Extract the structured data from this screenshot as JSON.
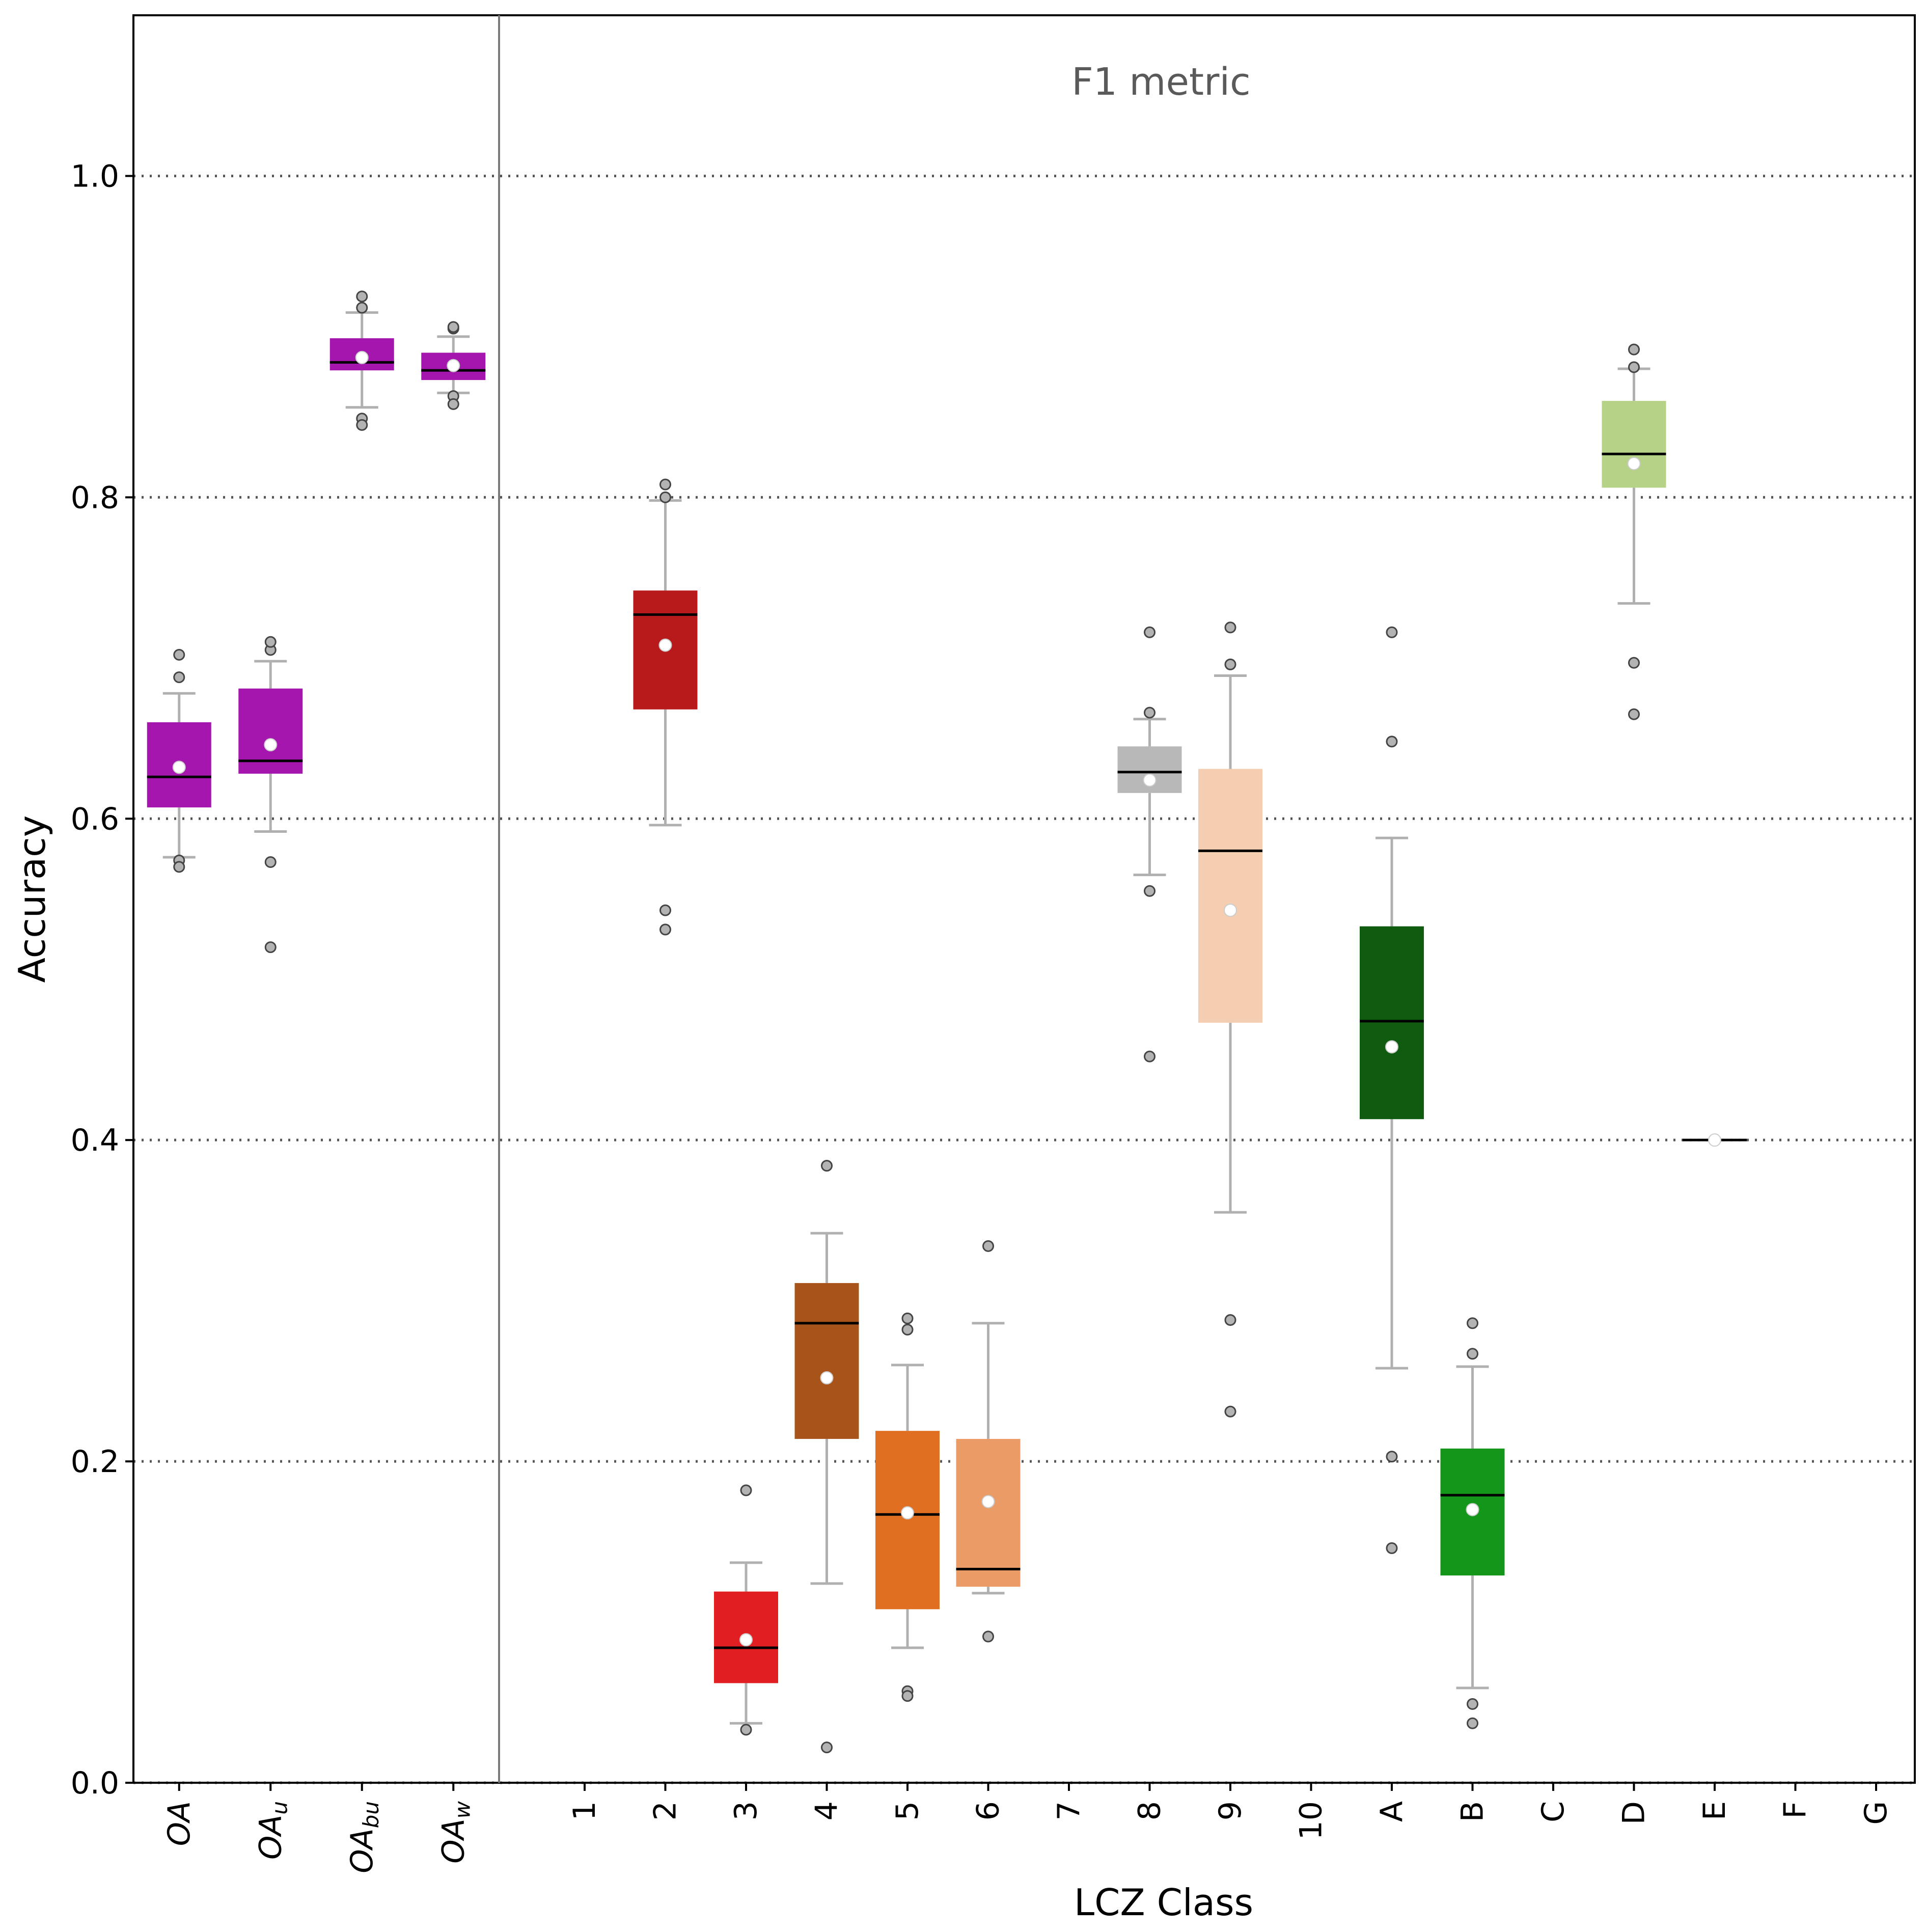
{
  "chart_data": {
    "type": "box",
    "annotation": "F1 metric",
    "xlabel": "LCZ Class",
    "ylabel": "Accuracy",
    "ylim": [
      0.0,
      1.1
    ],
    "yticks": [
      "0.0",
      "0.2",
      "0.4",
      "0.6",
      "0.8",
      "1.0"
    ],
    "grid": "dotted horizontal at each y tick",
    "groups": [
      {
        "name": "overall",
        "categories": [
          {
            "label": "OA",
            "sub": "",
            "color": "#a416ad",
            "q1": 0.607,
            "median": 0.626,
            "q3": 0.66,
            "lo": 0.576,
            "hi": 0.678,
            "mean": 0.632,
            "fliers": [
              0.574,
              0.57,
              0.688,
              0.702
            ]
          },
          {
            "label": "OA",
            "sub": "u",
            "color": "#a416ad",
            "q1": 0.628,
            "median": 0.636,
            "q3": 0.681,
            "lo": 0.592,
            "hi": 0.698,
            "mean": 0.646,
            "fliers": [
              0.573,
              0.52,
              0.705,
              0.71
            ]
          },
          {
            "label": "OA",
            "sub": "bu",
            "color": "#a416ad",
            "q1": 0.879,
            "median": 0.884,
            "q3": 0.899,
            "lo": 0.856,
            "hi": 0.915,
            "mean": 0.887,
            "fliers": [
              0.849,
              0.845,
              0.918,
              0.925
            ]
          },
          {
            "label": "OA",
            "sub": "w",
            "color": "#a416ad",
            "q1": 0.873,
            "median": 0.879,
            "q3": 0.89,
            "lo": 0.865,
            "hi": 0.9,
            "mean": 0.882,
            "fliers": [
              0.863,
              0.858,
              0.905,
              0.906
            ]
          }
        ]
      },
      {
        "name": "lcz",
        "categories": [
          {
            "label": "1",
            "sub": "",
            "color": null
          },
          {
            "label": "2",
            "sub": "",
            "color": "#b81a1c",
            "q1": 0.668,
            "median": 0.727,
            "q3": 0.742,
            "lo": 0.596,
            "hi": 0.798,
            "mean": 0.708,
            "fliers": [
              0.543,
              0.531,
              0.8,
              0.808
            ]
          },
          {
            "label": "3",
            "sub": "",
            "color": "#e11f23",
            "q1": 0.062,
            "median": 0.084,
            "q3": 0.119,
            "lo": 0.037,
            "hi": 0.137,
            "mean": 0.089,
            "fliers": [
              0.033,
              0.182
            ]
          },
          {
            "label": "4",
            "sub": "",
            "color": "#a8531a",
            "q1": 0.214,
            "median": 0.286,
            "q3": 0.311,
            "lo": 0.124,
            "hi": 0.342,
            "mean": 0.252,
            "fliers": [
              0.022,
              0.384
            ]
          },
          {
            "label": "5",
            "sub": "",
            "color": "#e06f22",
            "q1": 0.108,
            "median": 0.167,
            "q3": 0.219,
            "lo": 0.084,
            "hi": 0.26,
            "mean": 0.168,
            "fliers": [
              0.057,
              0.054,
              0.282,
              0.289
            ]
          },
          {
            "label": "6",
            "sub": "",
            "color": "#ea9b66",
            "q1": 0.122,
            "median": 0.133,
            "q3": 0.214,
            "lo": 0.118,
            "hi": 0.286,
            "mean": 0.175,
            "fliers": [
              0.091,
              0.334
            ]
          },
          {
            "label": "7",
            "sub": "",
            "color": null
          },
          {
            "label": "8",
            "sub": "",
            "color": "#b8b8b8",
            "q1": 0.616,
            "median": 0.629,
            "q3": 0.645,
            "lo": 0.565,
            "hi": 0.662,
            "mean": 0.624,
            "fliers": [
              0.555,
              0.452,
              0.666,
              0.716
            ]
          },
          {
            "label": "9",
            "sub": "",
            "color": "#f5ceb2",
            "q1": 0.473,
            "median": 0.58,
            "q3": 0.631,
            "lo": 0.355,
            "hi": 0.689,
            "mean": 0.543,
            "fliers": [
              0.288,
              0.231,
              0.696,
              0.719
            ]
          },
          {
            "label": "10",
            "sub": "",
            "color": null
          },
          {
            "label": "A",
            "sub": "",
            "color": "#0f5c11",
            "q1": 0.413,
            "median": 0.474,
            "q3": 0.533,
            "lo": 0.258,
            "hi": 0.588,
            "mean": 0.458,
            "fliers": [
              0.203,
              0.146,
              0.648,
              0.716
            ]
          },
          {
            "label": "B",
            "sub": "",
            "color": "#14961a",
            "q1": 0.129,
            "median": 0.179,
            "q3": 0.208,
            "lo": 0.059,
            "hi": 0.259,
            "mean": 0.17,
            "fliers": [
              0.049,
              0.037,
              0.267,
              0.286
            ]
          },
          {
            "label": "C",
            "sub": "",
            "color": null
          },
          {
            "label": "D",
            "sub": "",
            "color": "#b6d287",
            "q1": 0.806,
            "median": 0.827,
            "q3": 0.86,
            "lo": 0.734,
            "hi": 0.88,
            "mean": 0.821,
            "fliers": [
              0.697,
              0.665,
              0.881,
              0.892
            ]
          },
          {
            "label": "E",
            "sub": "",
            "color": "#000000",
            "q1": 0.4,
            "median": 0.4,
            "q3": 0.4,
            "lo": 0.4,
            "hi": 0.4,
            "mean": 0.4,
            "fliers": []
          },
          {
            "label": "F",
            "sub": "",
            "color": null
          },
          {
            "label": "G",
            "sub": "",
            "color": null
          }
        ]
      }
    ]
  }
}
